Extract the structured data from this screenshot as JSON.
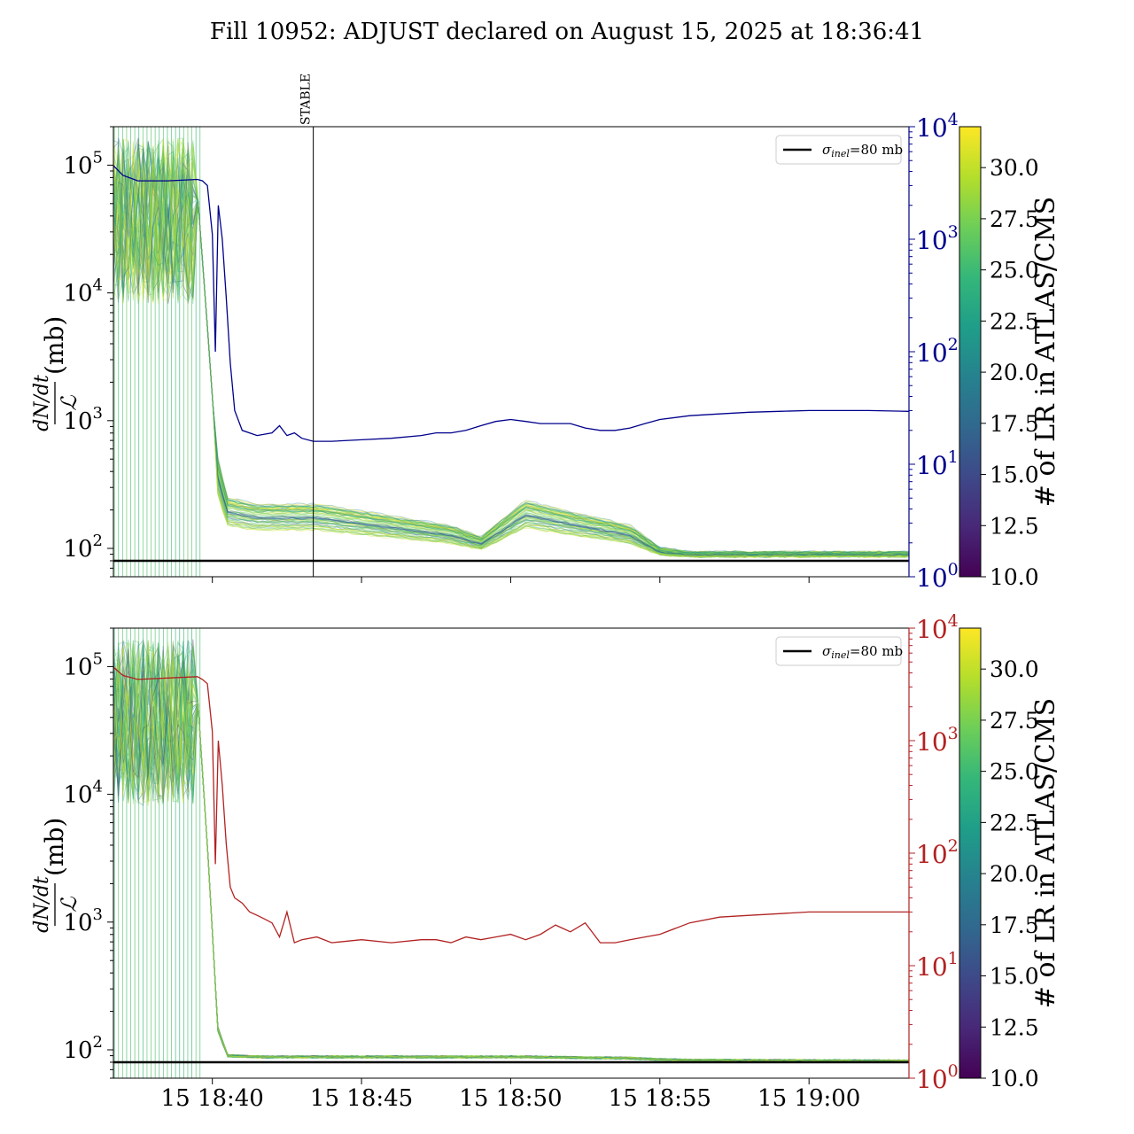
{
  "title": "Fill 10952: ADJUST declared on August 15, 2025 at 18:36:41",
  "colors": {
    "top_right_axis": "#00008b",
    "bottom_right_axis": "#b22222",
    "sigma_line": "#000000",
    "viridis": [
      "#440154",
      "#482878",
      "#3e4989",
      "#31688e",
      "#26828e",
      "#1f9e89",
      "#35b779",
      "#6ece58",
      "#b5de2b",
      "#fde725"
    ]
  },
  "chart_data": [
    {
      "type": "line",
      "panel": "top",
      "ylabel_left": "dN/dt / ℒ (mb)",
      "ylabel_left_parts": {
        "num": "dN/dt",
        "den": "ℒ",
        "unit": "(mb)"
      },
      "yscale_left": "log",
      "ylim_left": [
        60,
        200000
      ],
      "yticks_left": [
        {
          "value": 100,
          "base": "10",
          "exp": "2"
        },
        {
          "value": 1000,
          "base": "10",
          "exp": "3"
        },
        {
          "value": 10000,
          "base": "10",
          "exp": "4"
        },
        {
          "value": 100000,
          "base": "10",
          "exp": "5"
        }
      ],
      "yscale_right": "log",
      "ylim_right": [
        1,
        10000
      ],
      "yticks_right": [
        {
          "value": 1,
          "base": "10",
          "exp": "0"
        },
        {
          "value": 10,
          "base": "10",
          "exp": "1"
        },
        {
          "value": 100,
          "base": "10",
          "exp": "2"
        },
        {
          "value": 1000,
          "base": "10",
          "exp": "3"
        },
        {
          "value": 10000,
          "base": "10",
          "exp": "4"
        }
      ],
      "xlim": [
        "18:36:41",
        "19:03:21"
      ],
      "xticks": [
        {
          "value": "18:40:00",
          "label": "15 18:40"
        },
        {
          "value": "18:45:00",
          "label": "15 18:45"
        },
        {
          "value": "18:50:00",
          "label": "15 18:50"
        },
        {
          "value": "18:55:00",
          "label": "15 18:55"
        },
        {
          "value": "19:00:00",
          "label": "15 19:00"
        }
      ],
      "xtick_labels_visible": false,
      "vline": {
        "x": "18:43:23",
        "label": "STABLE"
      },
      "hline": {
        "y": 80,
        "label": "σinel=80 mb"
      },
      "legend": {
        "location": "upper right",
        "entries": [
          {
            "sym": "σ",
            "sub": "inel",
            "rest": "=80 mb"
          }
        ]
      },
      "colorbar": {
        "label": "# of LR in ATLAS/CMS",
        "range": [
          10.0,
          32.0
        ],
        "ticks": [
          "10.0",
          "12.5",
          "15.0",
          "17.5",
          "20.0",
          "22.5",
          "25.0",
          "27.5",
          "30.0"
        ]
      },
      "series": [
        {
          "axis": "right",
          "x": [
            "18:36:41",
            "18:37:00",
            "18:37:30",
            "18:38:30",
            "18:39:30",
            "18:39:40",
            "18:39:50",
            "18:40:00",
            "18:40:06",
            "18:40:12",
            "18:40:20",
            "18:40:28",
            "18:40:36",
            "18:40:45",
            "18:41:00",
            "18:41:30",
            "18:42:00",
            "18:42:15",
            "18:42:30",
            "18:42:45",
            "18:43:00",
            "18:43:23",
            "18:44:00",
            "18:45:00",
            "18:46:00",
            "18:47:00",
            "18:47:30",
            "18:48:00",
            "18:48:30",
            "18:49:00",
            "18:49:30",
            "18:50:00",
            "18:50:30",
            "18:51:00",
            "18:51:30",
            "18:52:00",
            "18:52:30",
            "18:53:00",
            "18:53:30",
            "18:54:00",
            "18:54:30",
            "18:55:00",
            "18:56:00",
            "18:57:00",
            "18:58:00",
            "18:59:00",
            "19:00:00",
            "19:01:00",
            "19:02:00",
            "19:03:21"
          ],
          "y": [
            4500,
            3700,
            3300,
            3300,
            3400,
            3300,
            3000,
            1100,
            100,
            2000,
            1000,
            300,
            80,
            30,
            20,
            18,
            19,
            22,
            18,
            19,
            17,
            16,
            16,
            16.5,
            17,
            18,
            19,
            19,
            20,
            22,
            24,
            25,
            24,
            23,
            23,
            23,
            21,
            20,
            20,
            21,
            23,
            25,
            27,
            28,
            29,
            29.5,
            30,
            30,
            30,
            29.5
          ]
        }
      ]
    },
    {
      "type": "line",
      "panel": "bottom",
      "ylabel_left": "dN/dt / ℒ (mb)",
      "ylabel_left_parts": {
        "num": "dN/dt",
        "den": "ℒ",
        "unit": "(mb)"
      },
      "yscale_left": "log",
      "ylim_left": [
        60,
        200000
      ],
      "yticks_left": [
        {
          "value": 100,
          "base": "10",
          "exp": "2"
        },
        {
          "value": 1000,
          "base": "10",
          "exp": "3"
        },
        {
          "value": 10000,
          "base": "10",
          "exp": "4"
        },
        {
          "value": 100000,
          "base": "10",
          "exp": "5"
        }
      ],
      "yscale_right": "log",
      "ylim_right": [
        1,
        10000
      ],
      "yticks_right": [
        {
          "value": 1,
          "base": "10",
          "exp": "0"
        },
        {
          "value": 10,
          "base": "10",
          "exp": "1"
        },
        {
          "value": 100,
          "base": "10",
          "exp": "2"
        },
        {
          "value": 1000,
          "base": "10",
          "exp": "3"
        },
        {
          "value": 10000,
          "base": "10",
          "exp": "4"
        }
      ],
      "xlim": [
        "18:36:41",
        "19:03:21"
      ],
      "xticks": [
        {
          "value": "18:40:00",
          "label": "15 18:40"
        },
        {
          "value": "18:45:00",
          "label": "15 18:45"
        },
        {
          "value": "18:50:00",
          "label": "15 18:50"
        },
        {
          "value": "18:55:00",
          "label": "15 18:55"
        },
        {
          "value": "19:00:00",
          "label": "15 19:00"
        }
      ],
      "xtick_labels_visible": true,
      "hline": {
        "y": 80,
        "label": "σinel=80 mb"
      },
      "legend": {
        "location": "upper right",
        "entries": [
          {
            "sym": "σ",
            "sub": "inel",
            "rest": "=80 mb"
          }
        ]
      },
      "colorbar": {
        "label": "# of LR in ATLAS/CMS",
        "range": [
          10.0,
          32.0
        ],
        "ticks": [
          "10.0",
          "12.5",
          "15.0",
          "17.5",
          "20.0",
          "22.5",
          "25.0",
          "27.5",
          "30.0"
        ]
      },
      "series": [
        {
          "axis": "right",
          "x": [
            "18:36:41",
            "18:37:00",
            "18:37:30",
            "18:38:30",
            "18:39:30",
            "18:39:40",
            "18:39:50",
            "18:40:00",
            "18:40:06",
            "18:40:12",
            "18:40:20",
            "18:40:28",
            "18:40:36",
            "18:40:45",
            "18:41:00",
            "18:41:15",
            "18:41:30",
            "18:41:45",
            "18:42:00",
            "18:42:15",
            "18:42:30",
            "18:42:45",
            "18:43:00",
            "18:43:30",
            "18:44:00",
            "18:45:00",
            "18:46:00",
            "18:47:00",
            "18:47:30",
            "18:48:00",
            "18:48:30",
            "18:49:00",
            "18:49:30",
            "18:50:00",
            "18:50:30",
            "18:51:00",
            "18:51:30",
            "18:52:00",
            "18:52:30",
            "18:53:00",
            "18:53:30",
            "18:54:00",
            "18:54:30",
            "18:55:00",
            "18:56:00",
            "18:57:00",
            "18:58:00",
            "18:59:00",
            "19:00:00",
            "19:01:00",
            "19:02:00",
            "19:03:21"
          ],
          "y": [
            4500,
            3800,
            3500,
            3600,
            3700,
            3500,
            3200,
            1200,
            80,
            1000,
            400,
            120,
            50,
            40,
            36,
            30,
            28,
            26,
            24,
            18,
            30,
            16,
            17,
            18,
            16,
            17,
            16,
            17,
            17,
            16,
            18,
            17,
            18,
            19,
            17,
            19,
            23,
            20,
            24,
            16,
            16,
            17,
            18,
            19,
            24,
            27,
            28,
            29,
            30,
            30,
            30,
            30
          ]
        }
      ]
    }
  ]
}
